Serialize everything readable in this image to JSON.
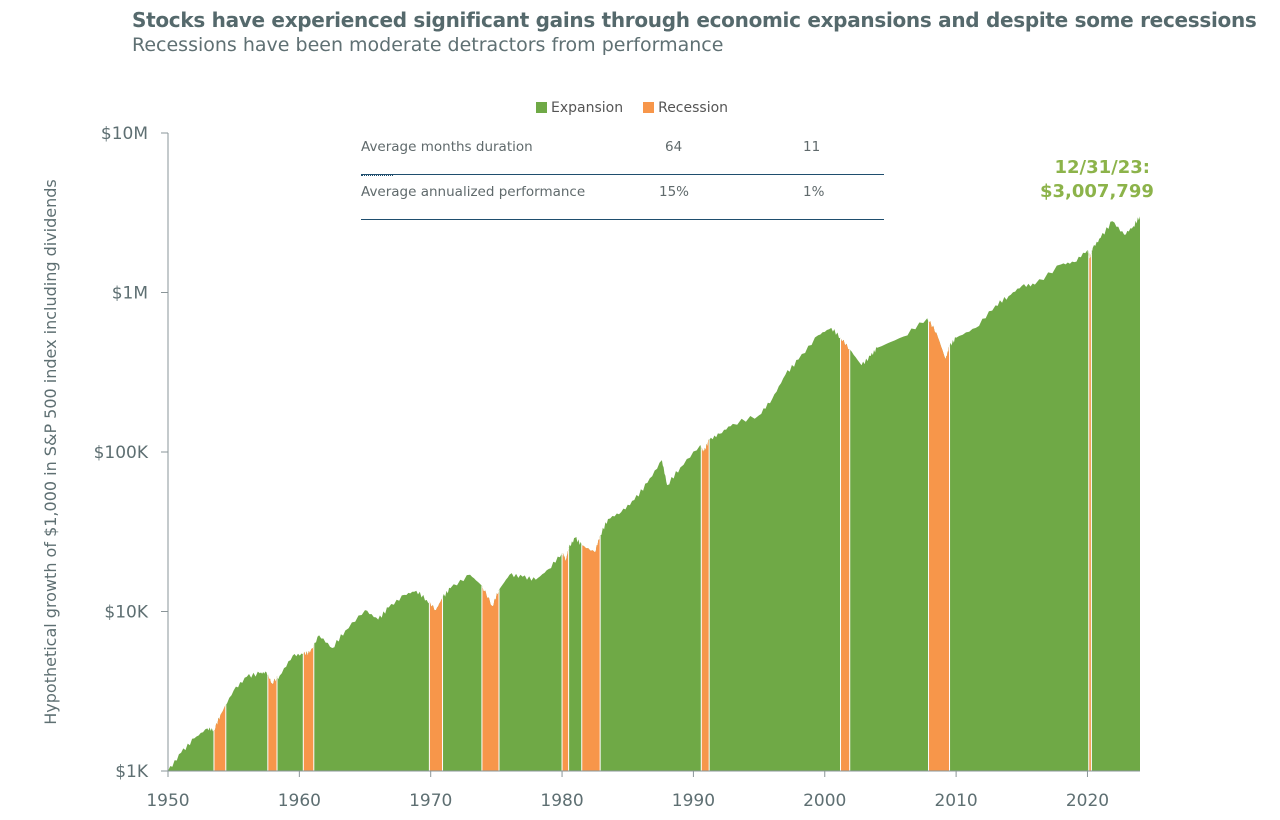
{
  "title": "Stocks have experienced significant gains through economic expansions and despite some recessions",
  "subtitle": "Recessions have been moderate detractors from performance",
  "legend": {
    "expansion": "Expansion",
    "recession": "Recession"
  },
  "table": {
    "rows": [
      {
        "label": "Average months duration",
        "expansion": "64",
        "recession": "11"
      },
      {
        "label": "Average annualized performance",
        "expansion": "15%",
        "recession": "1%"
      }
    ]
  },
  "annotation": {
    "date": "12/31/23:",
    "value": "$3,007,799"
  },
  "colors": {
    "expansion": "#6fa946",
    "recession": "#f7964a",
    "annotation": "#8cb34a"
  },
  "chart_data": {
    "type": "area",
    "ylabel": "Hypothetical growth of $1,000 in S&P 500 index including dividends",
    "yscale": "log",
    "ylim": [
      1000,
      10000000
    ],
    "xlim": [
      1950,
      2024
    ],
    "ytick_values": [
      1000,
      10000,
      100000,
      1000000,
      10000000
    ],
    "ytick_labels": [
      "$1K",
      "$10K",
      "$100K",
      "$1M",
      "$10M"
    ],
    "xtick_values": [
      1950,
      1960,
      1970,
      1980,
      1990,
      2000,
      2010,
      2020
    ],
    "xtick_labels": [
      "1950",
      "1960",
      "1970",
      "1980",
      "1990",
      "2000",
      "2010",
      "2020"
    ],
    "grid": false,
    "legend_position": "top",
    "series": {
      "x": [
        1950,
        1951,
        1952,
        1953,
        1953.5,
        1954,
        1955,
        1956,
        1957,
        1957.5,
        1957.9,
        1958.5,
        1959.5,
        1960.3,
        1960.8,
        1961.5,
        1962.5,
        1963.5,
        1965,
        1966,
        1966.8,
        1968,
        1968.9,
        1969.7,
        1970.4,
        1970.9,
        1971.5,
        1973,
        1973.9,
        1974.7,
        1975.2,
        1976,
        1977,
        1978,
        1979,
        1980,
        1980.3,
        1980.5,
        1981,
        1981.5,
        1982.5,
        1982.9,
        1983.5,
        1984.5,
        1985.5,
        1986.5,
        1987.6,
        1988,
        1989,
        1990.5,
        1990.8,
        1991.2,
        1992,
        1993,
        1995,
        1996,
        1997,
        1998,
        1999.5,
        2000.5,
        2001.2,
        2001.9,
        2002.8,
        2003.5,
        2004,
        2006,
        2007.8,
        2008.5,
        2009.2,
        2009.5,
        2010,
        2011.5,
        2013,
        2014,
        2015,
        2016,
        2018,
        2019,
        2020,
        2020.2,
        2020.4,
        2021,
        2021.9,
        2022.8,
        2023.5,
        2024
      ],
      "y": [
        1000,
        1300,
        1600,
        1850,
        1800,
        2250,
        3200,
        3900,
        4100,
        4150,
        3550,
        3950,
        5300,
        5400,
        5500,
        7100,
        5900,
        7600,
        10200,
        8900,
        10600,
        12700,
        13500,
        11800,
        10200,
        12200,
        14000,
        17000,
        14500,
        10800,
        13700,
        17000,
        16500,
        15800,
        18500,
        23300,
        21000,
        25000,
        29000,
        26000,
        23500,
        30000,
        38000,
        42000,
        50000,
        64000,
        89000,
        62000,
        80000,
        110000,
        100000,
        119000,
        130000,
        150000,
        170000,
        215000,
        305000,
        380000,
        540000,
        600000,
        520000,
        440000,
        350000,
        400000,
        450000,
        530000,
        690000,
        560000,
        380000,
        460000,
        520000,
        600000,
        830000,
        950000,
        1100000,
        1120000,
        1500000,
        1550000,
        1850000,
        1650000,
        1900000,
        2200000,
        2800000,
        2300000,
        2600000,
        3007799
      ]
    },
    "recessions": [
      [
        1953.5,
        1954.4
      ],
      [
        1957.6,
        1958.3
      ],
      [
        1960.3,
        1961.1
      ],
      [
        1969.9,
        1970.9
      ],
      [
        1973.9,
        1975.2
      ],
      [
        1980.0,
        1980.5
      ],
      [
        1981.5,
        1982.9
      ],
      [
        1990.6,
        1991.2
      ],
      [
        2001.2,
        2001.9
      ],
      [
        2007.9,
        2009.5
      ],
      [
        2020.1,
        2020.3
      ]
    ]
  }
}
